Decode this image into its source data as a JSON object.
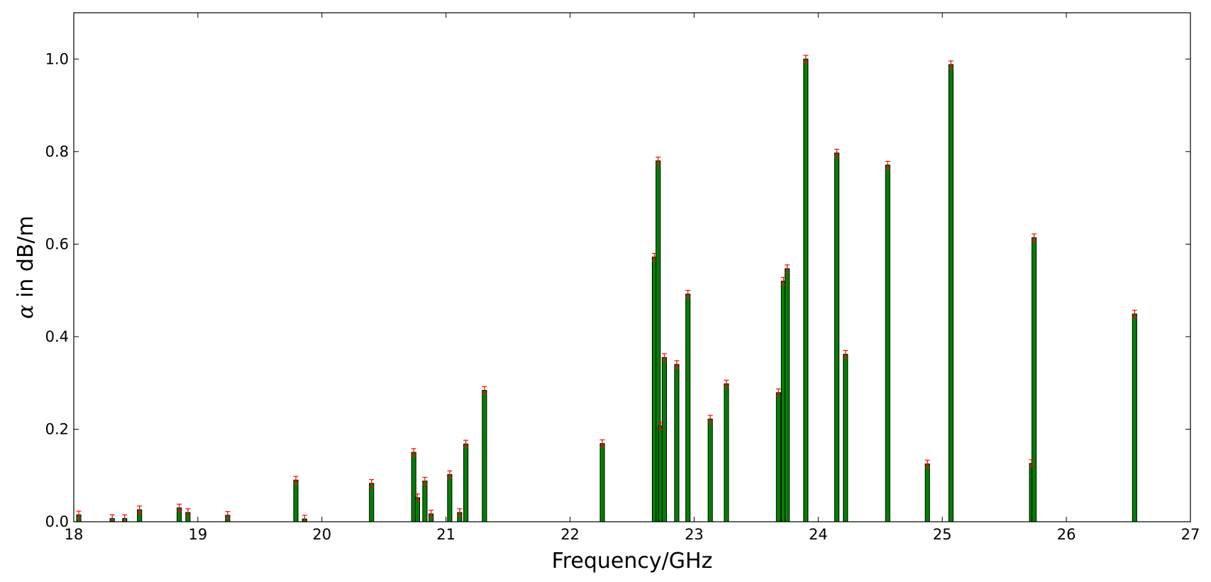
{
  "chart_data": {
    "type": "bar",
    "xlabel": "Frequency/GHz",
    "ylabel_symbol": "α",
    "ylabel_text": " in dB/m",
    "xlim": [
      18,
      27
    ],
    "ylim": [
      0,
      1.1
    ],
    "x_ticks": [
      "18",
      "19",
      "20",
      "21",
      "22",
      "23",
      "24",
      "25",
      "26",
      "27"
    ],
    "y_ticks": [
      "0.0",
      "0.2",
      "0.4",
      "0.6",
      "0.8",
      "1.0"
    ],
    "grid": false,
    "bar_width_ghz": 0.035,
    "error": 0.008,
    "bar_color": "#008000",
    "error_color": "#ff0000",
    "bars": [
      {
        "x": 18.04,
        "y": 0.015
      },
      {
        "x": 18.31,
        "y": 0.007
      },
      {
        "x": 18.41,
        "y": 0.007
      },
      {
        "x": 18.53,
        "y": 0.026
      },
      {
        "x": 18.85,
        "y": 0.03
      },
      {
        "x": 18.92,
        "y": 0.02
      },
      {
        "x": 19.24,
        "y": 0.014
      },
      {
        "x": 19.79,
        "y": 0.09
      },
      {
        "x": 19.86,
        "y": 0.006
      },
      {
        "x": 20.4,
        "y": 0.083
      },
      {
        "x": 20.74,
        "y": 0.15
      },
      {
        "x": 20.77,
        "y": 0.052
      },
      {
        "x": 20.83,
        "y": 0.088
      },
      {
        "x": 20.88,
        "y": 0.017
      },
      {
        "x": 21.03,
        "y": 0.102
      },
      {
        "x": 21.11,
        "y": 0.02
      },
      {
        "x": 21.16,
        "y": 0.168
      },
      {
        "x": 21.31,
        "y": 0.284
      },
      {
        "x": 22.26,
        "y": 0.169
      },
      {
        "x": 22.68,
        "y": 0.572
      },
      {
        "x": 22.71,
        "y": 0.78
      },
      {
        "x": 22.73,
        "y": 0.207
      },
      {
        "x": 22.76,
        "y": 0.355
      },
      {
        "x": 22.86,
        "y": 0.34
      },
      {
        "x": 22.95,
        "y": 0.492
      },
      {
        "x": 23.13,
        "y": 0.222
      },
      {
        "x": 23.26,
        "y": 0.298
      },
      {
        "x": 23.68,
        "y": 0.279
      },
      {
        "x": 23.72,
        "y": 0.52
      },
      {
        "x": 23.75,
        "y": 0.547
      },
      {
        "x": 23.9,
        "y": 1.0
      },
      {
        "x": 24.15,
        "y": 0.797
      },
      {
        "x": 24.22,
        "y": 0.362
      },
      {
        "x": 24.56,
        "y": 0.771
      },
      {
        "x": 24.88,
        "y": 0.125
      },
      {
        "x": 25.07,
        "y": 0.988
      },
      {
        "x": 25.72,
        "y": 0.126
      },
      {
        "x": 25.74,
        "y": 0.614
      },
      {
        "x": 26.55,
        "y": 0.449
      }
    ]
  }
}
